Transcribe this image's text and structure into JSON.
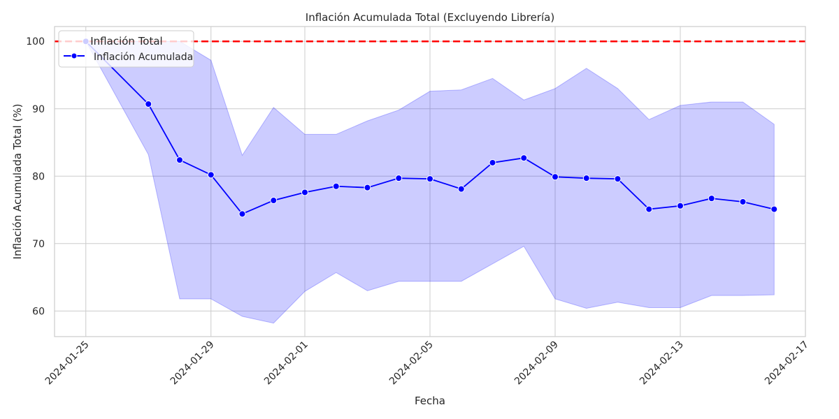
{
  "chart_data": {
    "type": "line",
    "title": "Inflación Acumulada Total (Excluyendo Librería)",
    "xlabel": "Fecha",
    "ylabel": "Inflación Acumulada Total (%)",
    "x_axis_kind": "date",
    "xlim": [
      "2024-01-24",
      "2024-02-17"
    ],
    "ylim": [
      56.2,
      102.2
    ],
    "x_ticks": [
      "2024-01-25",
      "2024-01-29",
      "2024-02-01",
      "2024-02-05",
      "2024-02-09",
      "2024-02-13",
      "2024-02-17"
    ],
    "y_ticks": [
      60,
      70,
      80,
      90,
      100
    ],
    "grid": true,
    "legend": {
      "title": "Inflación Total",
      "placement": "upper-left",
      "entries": [
        "Inflación Acumulada"
      ]
    },
    "reference_line": {
      "y": 100,
      "style": "dashed",
      "color": "#ff0000"
    },
    "series": [
      {
        "name": "Inflación Acumulada",
        "color": "#0000ff",
        "x": [
          "2024-01-25",
          "2024-01-27",
          "2024-01-28",
          "2024-01-29",
          "2024-01-30",
          "2024-01-31",
          "2024-02-01",
          "2024-02-02",
          "2024-02-03",
          "2024-02-04",
          "2024-02-05",
          "2024-02-06",
          "2024-02-07",
          "2024-02-08",
          "2024-02-09",
          "2024-02-10",
          "2024-02-11",
          "2024-02-12",
          "2024-02-13",
          "2024-02-14",
          "2024-02-15",
          "2024-02-16"
        ],
        "values": [
          100,
          90.7,
          82.4,
          80.2,
          74.4,
          76.4,
          77.6,
          78.5,
          78.3,
          79.7,
          79.6,
          78.1,
          82.0,
          82.7,
          79.9,
          79.7,
          79.6,
          75.1,
          75.6,
          76.7,
          76.2,
          75.1
        ],
        "band_lower": [
          100,
          83.2,
          61.8,
          61.8,
          59.2,
          58.2,
          62.9,
          65.7,
          63.0,
          64.4,
          64.4,
          64.4,
          67.0,
          69.6,
          61.8,
          60.4,
          61.3,
          60.5,
          60.5,
          62.3,
          62.3,
          62.4
        ],
        "band_upper": [
          100,
          100,
          100,
          97.2,
          83.1,
          90.2,
          86.2,
          86.2,
          88.2,
          89.8,
          92.6,
          92.8,
          94.5,
          91.3,
          93.0,
          96.0,
          93.0,
          88.4,
          90.5,
          91.0,
          91.0,
          87.7
        ],
        "band_color": "#0000ff"
      }
    ]
  }
}
